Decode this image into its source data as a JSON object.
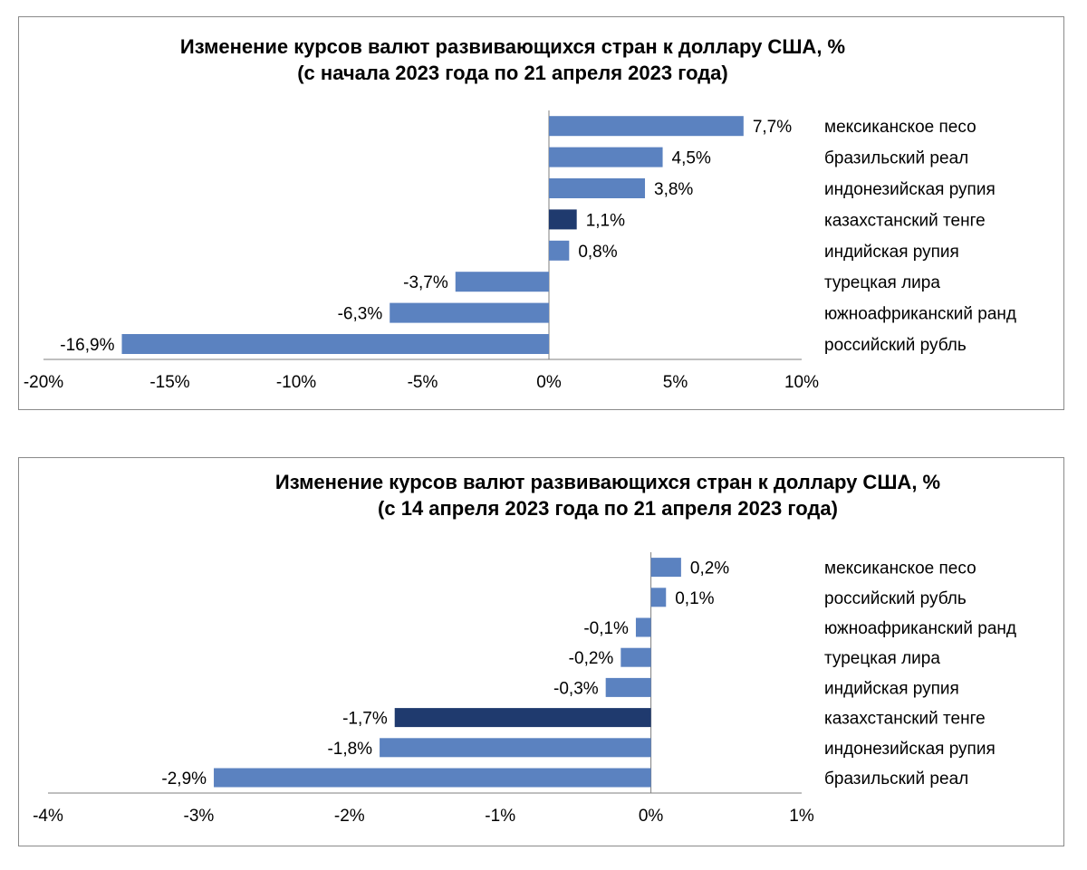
{
  "colors": {
    "bar": "#5b82c0",
    "highlight": "#1f3a6e",
    "axis": "#7f7f7f"
  },
  "chart_data": [
    {
      "type": "bar",
      "orientation": "horizontal",
      "title": "Изменение курсов валют развивающихся стран к доллару США, %",
      "subtitle": "(с начала 2023 года по 21 апреля 2023 года)",
      "categories": [
        "мексиканское песо",
        "бразильский реал",
        "индонезийская рупия",
        "казахстанский тенге",
        "индийская рупия",
        "турецкая лира",
        "южноафриканский ранд",
        "российский рубль"
      ],
      "values": [
        7.7,
        4.5,
        3.8,
        1.1,
        0.8,
        -3.7,
        -6.3,
        -16.9
      ],
      "data_labels": [
        "7,7%",
        "4,5%",
        "3,8%",
        "1,1%",
        "0,8%",
        "-3,7%",
        "-6,3%",
        "-16,9%"
      ],
      "highlight": "казахстанский тенге",
      "xlim": [
        -20,
        10
      ],
      "xticks": [
        -20,
        -15,
        -10,
        -5,
        0,
        5,
        10
      ],
      "xtick_labels": [
        "-20%",
        "-15%",
        "-10%",
        "-5%",
        "0%",
        "5%",
        "10%"
      ],
      "legend": "none",
      "grid": false
    },
    {
      "type": "bar",
      "orientation": "horizontal",
      "title": "Изменение курсов валют развивающихся стран к доллару США, %",
      "subtitle": "(с 14 апреля 2023 года по 21 апреля 2023 года)",
      "categories": [
        "мексиканское песо",
        "российский рубль",
        "южноафриканский ранд",
        "турецкая лира",
        "индийская рупия",
        "казахстанский тенге",
        "индонезийская рупия",
        "бразильский реал"
      ],
      "values": [
        0.2,
        0.1,
        -0.1,
        -0.2,
        -0.3,
        -1.7,
        -1.8,
        -2.9
      ],
      "data_labels": [
        "0,2%",
        "0,1%",
        "-0,1%",
        "-0,2%",
        "-0,3%",
        "-1,7%",
        "-1,8%",
        "-2,9%"
      ],
      "highlight": "казахстанский тенге",
      "xlim": [
        -4,
        1
      ],
      "xticks": [
        -4,
        -3,
        -2,
        -1,
        0,
        1
      ],
      "xtick_labels": [
        "-4%",
        "-3%",
        "-2%",
        "-1%",
        "0%",
        "1%"
      ],
      "legend": "none",
      "grid": false
    }
  ]
}
